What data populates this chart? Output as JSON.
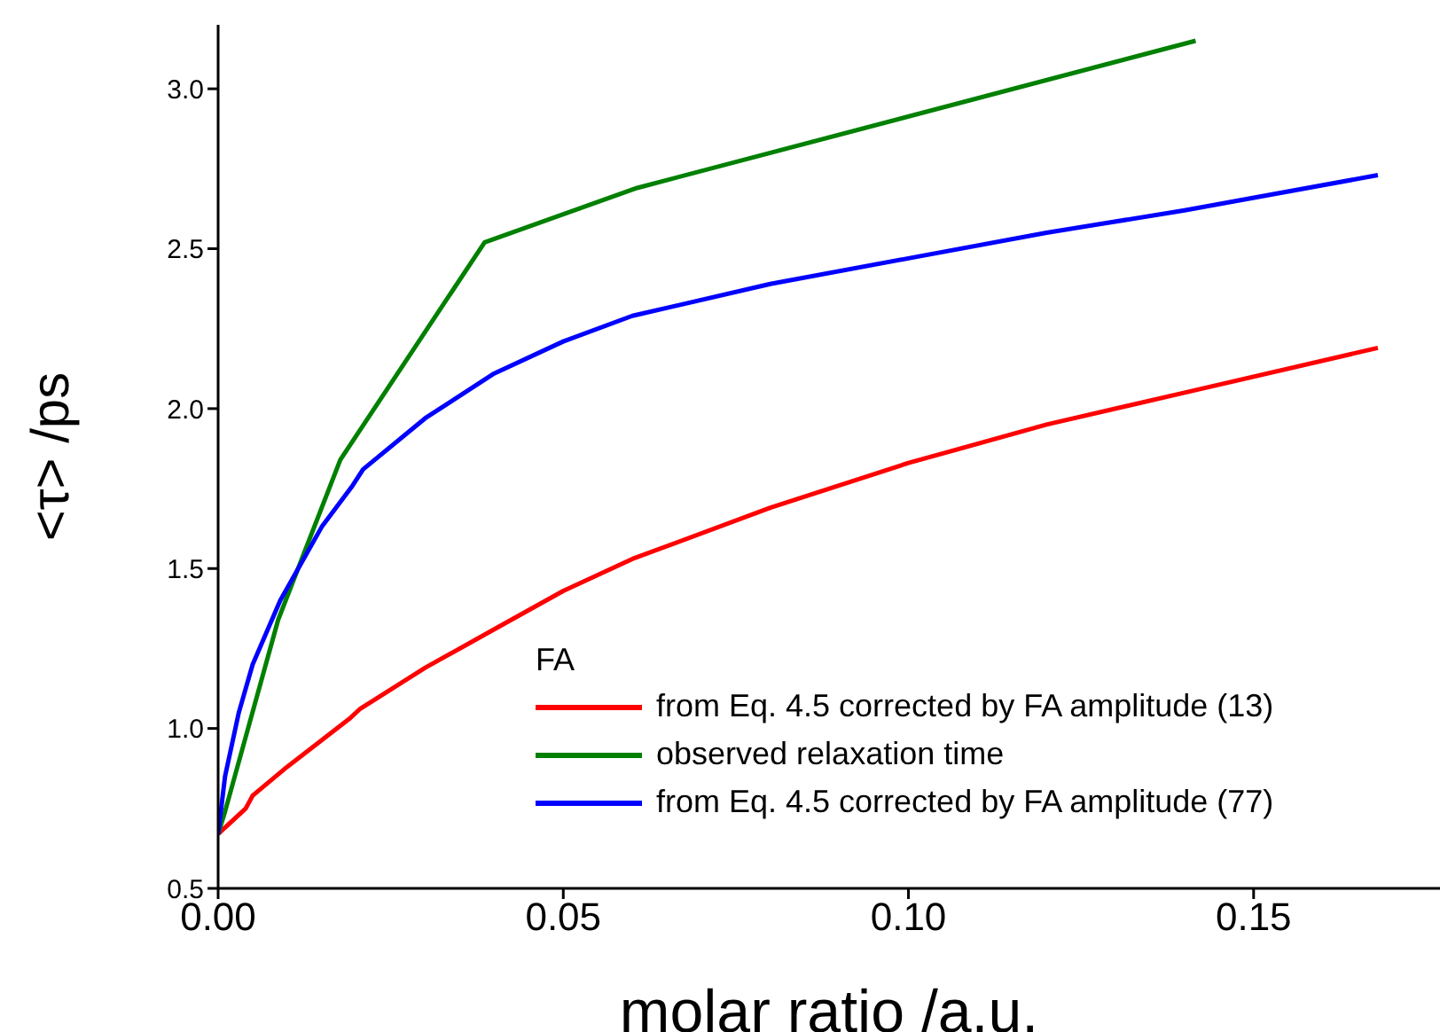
{
  "chart_data": {
    "type": "line",
    "xlabel": "molar ratio /a.u.",
    "ylabel": "<τ> /ps",
    "legend_title": "FA",
    "xlim": [
      0,
      0.177
    ],
    "ylim": [
      0.5,
      3.2
    ],
    "xticks": [
      {
        "value": 0,
        "label": "0.00"
      },
      0.05,
      {
        "value": 0.1,
        "label": "0.10"
      },
      0.15
    ],
    "yticks": [
      0.5,
      {
        "value": 1,
        "label": "1.0"
      },
      1.5,
      {
        "value": 2,
        "label": "2.0"
      },
      2.5,
      {
        "value": 3,
        "label": "3.0"
      }
    ],
    "grid": false,
    "legend": "bottom right",
    "marker": "none",
    "line_style": "solid",
    "series": [
      {
        "name": "from Eq. 4.5 corrected by FA amplitude (13)",
        "color": "#ff0000",
        "x": [
          0,
          0.004,
          0.005,
          0.01,
          0.019,
          0.0205,
          0.03,
          0.04,
          0.05,
          0.06,
          0.08,
          0.1,
          0.12,
          0.14,
          0.168
        ],
        "values": [
          0.67,
          0.75,
          0.79,
          0.88,
          1.03,
          1.06,
          1.19,
          1.31,
          1.43,
          1.53,
          1.69,
          1.83,
          1.95,
          2.05,
          2.19
        ]
      },
      {
        "name": "observed relaxation time",
        "color": "#008000",
        "x": [
          0,
          0.001,
          0.0087,
          0.0177,
          0.0386,
          0.0607,
          0.1416
        ],
        "values": [
          0.67,
          0.74,
          1.34,
          1.84,
          2.52,
          2.69,
          3.15
        ]
      },
      {
        "name": "from Eq. 4.5 corrected by FA amplitude (77)",
        "color": "#0000ff",
        "x": [
          0,
          0.001,
          0.003,
          0.005,
          0.009,
          0.015,
          0.0195,
          0.021,
          0.03,
          0.04,
          0.05,
          0.06,
          0.08,
          0.1,
          0.12,
          0.14,
          0.168
        ],
        "values": [
          0.67,
          0.85,
          1.05,
          1.2,
          1.4,
          1.63,
          1.76,
          1.81,
          1.97,
          2.11,
          2.21,
          2.29,
          2.39,
          2.47,
          2.55,
          2.62,
          2.73
        ]
      }
    ]
  }
}
